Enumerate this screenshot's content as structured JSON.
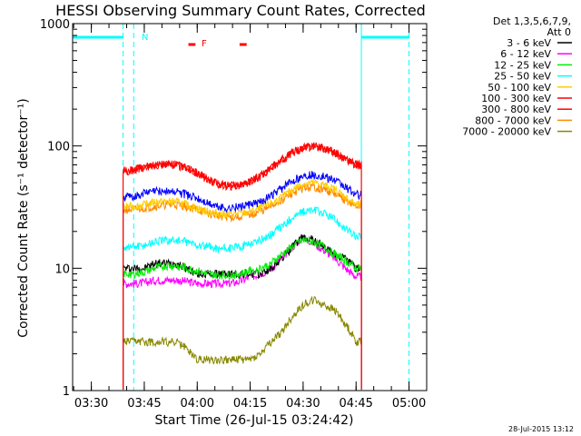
{
  "chart_data": {
    "type": "line",
    "title": "HESSI Observing Summary Count Rates, Corrected",
    "xlabel": "Start Time (26-Jul-15 03:24:42)",
    "ylabel": "Corrected Count Rate (s⁻¹ detector⁻¹)",
    "yscale": "log",
    "ylim": [
      1,
      1000
    ],
    "xlim": [
      "03:24:42",
      "05:05:00"
    ],
    "x_ticks": [
      "03:30",
      "03:45",
      "04:00",
      "04:15",
      "04:30",
      "04:45",
      "05:00"
    ],
    "y_ticks": [
      "1",
      "10",
      "100",
      "1000"
    ],
    "data_interval": [
      "03:39:00",
      "04:46:30"
    ],
    "legend_header": [
      "Det 1,3,5,6,7,9,",
      "Att 0"
    ],
    "legend_position": "top-right outside",
    "timestamp": "28-Jul-2015 13:12",
    "x_times": [
      "03:39",
      "03:42",
      "03:45",
      "03:48",
      "03:51",
      "03:54",
      "03:57",
      "04:00",
      "04:03",
      "04:06",
      "04:09",
      "04:12",
      "04:15",
      "04:18",
      "04:21",
      "04:24",
      "04:27",
      "04:30",
      "04:33",
      "04:36",
      "04:39",
      "04:42",
      "04:45"
    ],
    "series": [
      {
        "name": "3 - 6 keV",
        "color": "#000000",
        "values": [
          10,
          10,
          10,
          11,
          11,
          11,
          10,
          9,
          9,
          9,
          9,
          9,
          9,
          9,
          10,
          12,
          15,
          18,
          17,
          15,
          13,
          12,
          10
        ]
      },
      {
        "name": "6 - 12 keV",
        "color": "#ff00ff",
        "values": [
          7.5,
          7.5,
          7.6,
          8,
          8,
          8,
          7.8,
          7.5,
          7.5,
          7.5,
          7.5,
          7.8,
          8.5,
          9,
          10,
          12,
          15,
          18,
          16,
          14,
          12,
          10,
          8.5
        ]
      },
      {
        "name": "12 - 25 keV",
        "color": "#00ee00",
        "values": [
          9,
          9,
          9.3,
          10,
          10.5,
          10.5,
          10,
          9.5,
          9,
          8.8,
          8.8,
          9,
          9.5,
          10,
          11,
          13,
          15,
          17,
          16.5,
          15,
          13,
          11.5,
          10
        ]
      },
      {
        "name": "25 - 50 keV",
        "color": "#00ffff",
        "values": [
          15,
          15,
          15.5,
          16.5,
          17,
          17,
          16.5,
          15.5,
          15,
          14.5,
          14.5,
          15,
          16,
          17,
          19,
          22,
          26,
          29,
          30,
          28,
          25,
          21,
          18
        ]
      },
      {
        "name": "50 - 100 keV",
        "color": "#ffcc00",
        "values": [
          32,
          32,
          33,
          35,
          35,
          35,
          33,
          31,
          29,
          28,
          27.5,
          28,
          29,
          31,
          34,
          38,
          44,
          49,
          50,
          48,
          44,
          38,
          33
        ]
      },
      {
        "name": "100 - 300 keV",
        "color": "#ff0000",
        "values": [
          62,
          64,
          67,
          70,
          71,
          70,
          66,
          60,
          53,
          49,
          47,
          48,
          51,
          57,
          66,
          77,
          88,
          96,
          100,
          96,
          88,
          79,
          70
        ]
      },
      {
        "name": "300 - 800 keV",
        "color": "#ff0000",
        "values": [
          62,
          64,
          67,
          70,
          71,
          70,
          66,
          60,
          53,
          49,
          47,
          48,
          51,
          57,
          66,
          77,
          88,
          96,
          100,
          96,
          88,
          79,
          70
        ]
      },
      {
        "name": "800 - 7000 keV",
        "color": "#ff8800",
        "values": [
          30,
          30,
          31,
          32,
          33,
          33,
          32,
          30,
          28,
          27,
          26,
          26.5,
          27.5,
          29,
          32,
          36,
          41,
          45,
          46,
          44,
          40,
          36,
          32
        ]
      },
      {
        "name": "7000 - 20000 keV",
        "color": "#888800",
        "values": [
          2.5,
          2.5,
          2.5,
          2.5,
          2.5,
          2.5,
          2.2,
          1.8,
          1.8,
          1.8,
          1.8,
          1.8,
          1.8,
          2,
          2.5,
          3,
          4,
          5,
          5.5,
          5,
          4.5,
          3.5,
          2.5
        ]
      },
      {
        "name": "",
        "color": "#0000ff",
        "values": [
          38,
          39,
          41,
          43,
          43,
          42,
          40,
          37,
          34,
          32,
          31,
          32,
          33,
          35,
          39,
          45,
          52,
          57,
          58,
          56,
          52,
          46,
          40
        ]
      }
    ],
    "annotations": {
      "label_n": "N",
      "label_f": "F"
    }
  }
}
